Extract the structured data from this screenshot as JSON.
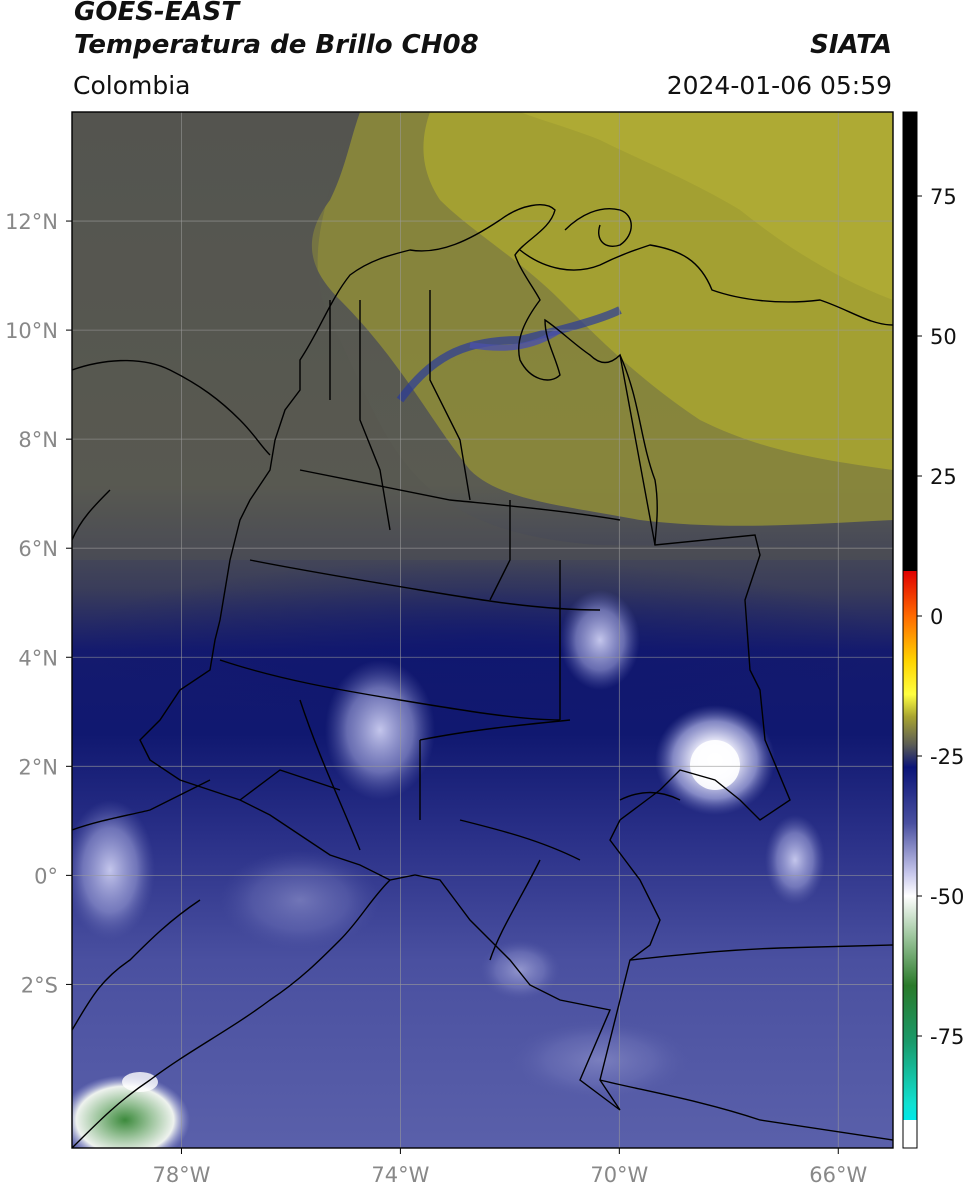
{
  "header": {
    "title_line1": "GOES-EAST",
    "title_line2": "Temperatura de Brillo CH08",
    "brand": "SIATA",
    "region": "Colombia",
    "datetime": "2024-01-06 05:59"
  },
  "map": {
    "lon_range": [
      -80,
      -65
    ],
    "lat_range": [
      -5,
      14
    ],
    "lon_ticks": [
      {
        "value": -78,
        "label": "78°W"
      },
      {
        "value": -74,
        "label": "74°W"
      },
      {
        "value": -70,
        "label": "70°W"
      },
      {
        "value": -66,
        "label": "66°W"
      }
    ],
    "lat_ticks": [
      {
        "value": 12,
        "label": "12°N"
      },
      {
        "value": 10,
        "label": "10°N"
      },
      {
        "value": 8,
        "label": "8°N"
      },
      {
        "value": 6,
        "label": "6°N"
      },
      {
        "value": 4,
        "label": "4°N"
      },
      {
        "value": 2,
        "label": "2°N"
      },
      {
        "value": 0,
        "label": "0°"
      },
      {
        "value": -2,
        "label": "2°S"
      }
    ],
    "gridlines": true,
    "colors": {
      "warm_olive": "#a8a430",
      "mid_gray": "#5b5c55",
      "navy": "#101870",
      "blue_violet": "#4a50a0",
      "lavender": "#9a9ed6",
      "white_core": "#ffffff",
      "border_line": "#000000"
    }
  },
  "colorbar": {
    "range": [
      -95,
      90
    ],
    "ticks": [
      {
        "value": 75,
        "label": "75"
      },
      {
        "value": 50,
        "label": "50"
      },
      {
        "value": 25,
        "label": "25"
      },
      {
        "value": 0,
        "label": "0"
      },
      {
        "value": -25,
        "label": "-25"
      },
      {
        "value": -50,
        "label": "-50"
      },
      {
        "value": -75,
        "label": "-75"
      }
    ],
    "stops": [
      {
        "value": 90,
        "color": "#000000"
      },
      {
        "value": 8,
        "color": "#000000"
      },
      {
        "value": 8,
        "color": "#e00000"
      },
      {
        "value": 0,
        "color": "#ff6a00"
      },
      {
        "value": -8,
        "color": "#ffd400"
      },
      {
        "value": -14,
        "color": "#ffff40"
      },
      {
        "value": -18,
        "color": "#a8a430"
      },
      {
        "value": -23,
        "color": "#5b5c55"
      },
      {
        "value": -27,
        "color": "#0a1478"
      },
      {
        "value": -37,
        "color": "#4a50a0"
      },
      {
        "value": -46,
        "color": "#c8c8ec"
      },
      {
        "value": -50,
        "color": "#ffffff"
      },
      {
        "value": -57,
        "color": "#a0c8a0"
      },
      {
        "value": -66,
        "color": "#2a7a2a"
      },
      {
        "value": -76,
        "color": "#1a9a6a"
      },
      {
        "value": -87,
        "color": "#10e0d0"
      },
      {
        "value": -90,
        "color": "#00e8e8"
      },
      {
        "value": -90,
        "color": "#ffffff"
      },
      {
        "value": -95,
        "color": "#ffffff"
      }
    ]
  }
}
